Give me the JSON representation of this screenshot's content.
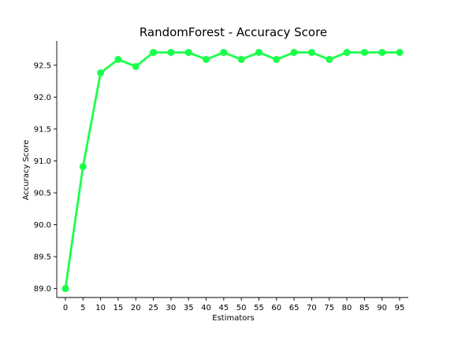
{
  "chart_data": {
    "type": "line",
    "title": "RandomForest - Accuracy Score",
    "xlabel": "Estimators",
    "ylabel": "Accuracy Score",
    "x": [
      0,
      5,
      10,
      15,
      20,
      25,
      30,
      35,
      40,
      45,
      50,
      55,
      60,
      65,
      70,
      75,
      80,
      85,
      90,
      95
    ],
    "series": [
      {
        "values": [
          89.0,
          90.91,
          92.38,
          92.59,
          92.48,
          92.7,
          92.7,
          92.7,
          92.59,
          92.7,
          92.59,
          92.7,
          92.59,
          92.7,
          92.7,
          92.59,
          92.7,
          92.7,
          92.7,
          92.7
        ],
        "color": "#1aff4a"
      }
    ],
    "yticks": [
      89.0,
      89.5,
      90.0,
      90.5,
      91.0,
      91.5,
      92.0,
      92.5
    ],
    "ytick_labels": [
      "89.0",
      "89.5",
      "90.0",
      "90.5",
      "91.0",
      "91.5",
      "92.0",
      "92.5"
    ],
    "xtick_labels": [
      "0",
      "5",
      "10",
      "15",
      "20",
      "25",
      "30",
      "35",
      "40",
      "45",
      "50",
      "55",
      "60",
      "65",
      "70",
      "75",
      "80",
      "85",
      "90",
      "95"
    ],
    "ylim": [
      88.86,
      92.88
    ],
    "grid": false,
    "spines": [
      "left",
      "bottom"
    ]
  }
}
